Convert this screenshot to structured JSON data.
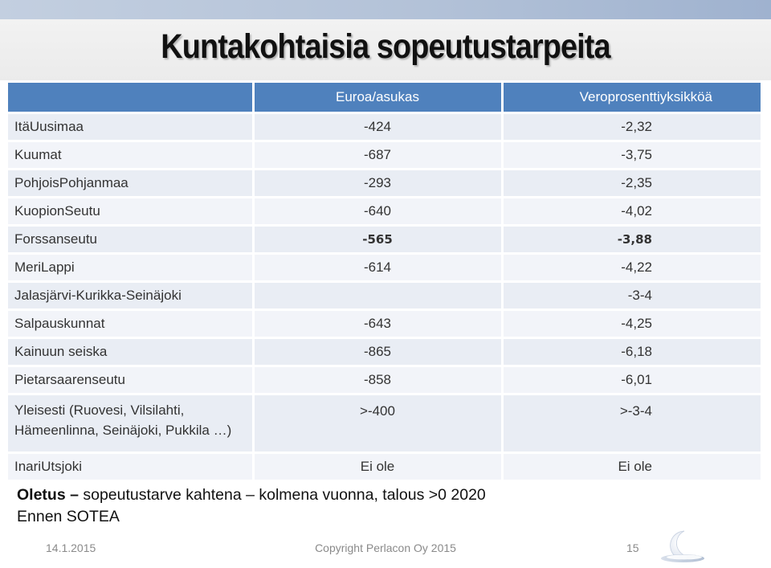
{
  "slide": {
    "title": "Kuntakohtaisia sopeutustarpeita",
    "table": {
      "headers": [
        "",
        "Euroa/asukas",
        "Veroprosenttiyksikköä"
      ],
      "rows": [
        {
          "name": "ItäUusimaa",
          "eur": "-424",
          "vero": "-2,32"
        },
        {
          "name": "Kuumat",
          "eur": "-687",
          "vero": "-3,75"
        },
        {
          "name": "PohjoisPohjanmaa",
          "eur": "-293",
          "vero": "-2,35"
        },
        {
          "name": "KuopionSeutu",
          "eur": "-640",
          "vero": "-4,02"
        },
        {
          "name": "Forssanseutu",
          "eur": "-565",
          "vero": "-3,88"
        },
        {
          "name": "MeriLappi",
          "eur": "-614",
          "vero": "-4,22"
        },
        {
          "name": "Jalasjärvi-Kurikka-Seinäjoki",
          "eur": "",
          "vero": "-3-4"
        },
        {
          "name": "Salpauskunnat",
          "eur": "-643",
          "vero": "-4,25"
        },
        {
          "name": "Kainuun seiska",
          "eur": "-865",
          "vero": "-6,18"
        },
        {
          "name": "Pietarsaarenseutu",
          "eur": "-858",
          "vero": "-6,01"
        },
        {
          "name": "Yleisesti (Ruovesi, Vilsilahti, Hämeenlinna, Seinäjoki, Pukkila …)",
          "eur": ">-400",
          "vero": ">-3-4"
        },
        {
          "name": "InariUtsjoki",
          "eur": "Ei ole",
          "vero": "Ei ole"
        }
      ]
    },
    "note": {
      "bold": "Oletus –",
      "rest": " sopeutustarve kahtena – kolmena vuonna, talous >0 2020",
      "line2": "Ennen SOTEA"
    },
    "footer": {
      "date": "14.1.2015",
      "copyright": "Copyright Perlacon Oy 2015",
      "page": "15"
    },
    "colors": {
      "header_blue": "#4f81bd",
      "row_light": "#e9edf4",
      "top_bar": "#b3c2d8"
    }
  }
}
